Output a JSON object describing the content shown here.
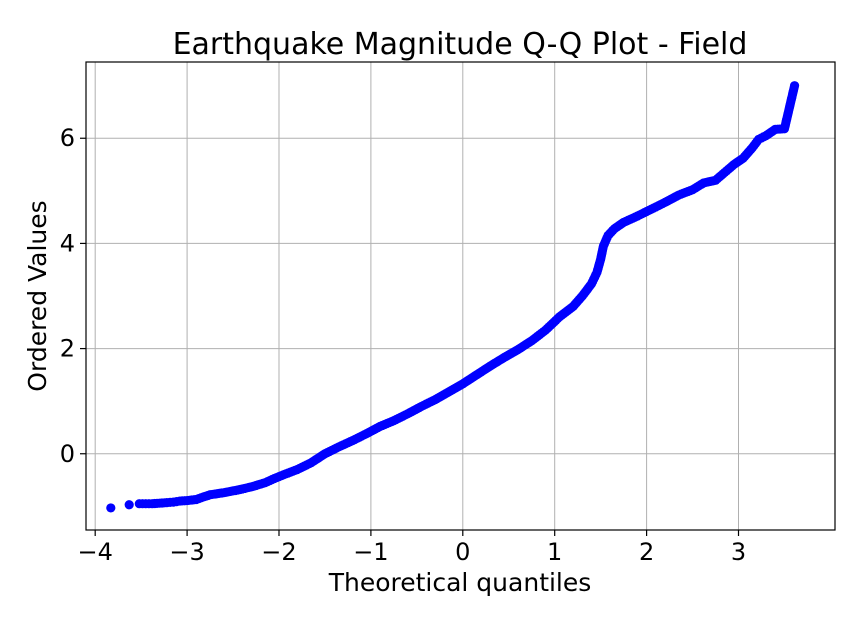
{
  "chart_data": {
    "type": "scatter",
    "title": "Earthquake Magnitude Q-Q Plot - Field",
    "xlabel": "Theoretical quantiles",
    "ylabel": "Ordered Values",
    "xlim": [
      -4.1,
      4.05
    ],
    "ylim": [
      -1.45,
      7.45
    ],
    "x_ticks": [
      -4,
      -3,
      -2,
      -1,
      0,
      1,
      2,
      3
    ],
    "x_tick_labels": [
      "−4",
      "−3",
      "−2",
      "−1",
      "0",
      "1",
      "2",
      "3"
    ],
    "y_ticks": [
      0,
      2,
      4,
      6
    ],
    "y_tick_labels": [
      "0",
      "2",
      "4",
      "6"
    ],
    "grid": true,
    "marker_color": "#0000ff",
    "series": [
      {
        "points": [
          [
            -3.83,
            -1.03
          ],
          [
            -3.63,
            -0.97
          ],
          [
            -3.52,
            -0.95
          ],
          [
            -3.45,
            -0.95
          ],
          [
            -3.38,
            -0.95
          ],
          [
            -3.3,
            -0.94
          ],
          [
            -3.22,
            -0.93
          ],
          [
            -3.15,
            -0.92
          ],
          [
            -3.08,
            -0.9
          ],
          [
            -3.0,
            -0.89
          ],
          [
            -2.9,
            -0.87
          ],
          [
            -2.82,
            -0.82
          ],
          [
            -2.75,
            -0.78
          ],
          [
            -2.6,
            -0.74
          ],
          [
            -2.45,
            -0.69
          ],
          [
            -2.3,
            -0.63
          ],
          [
            -2.15,
            -0.55
          ],
          [
            -2.05,
            -0.47
          ],
          [
            -1.95,
            -0.4
          ],
          [
            -1.8,
            -0.3
          ],
          [
            -1.65,
            -0.17
          ],
          [
            -1.5,
            0.0
          ],
          [
            -1.35,
            0.13
          ],
          [
            -1.2,
            0.25
          ],
          [
            -1.05,
            0.38
          ],
          [
            -0.9,
            0.52
          ],
          [
            -0.75,
            0.63
          ],
          [
            -0.6,
            0.76
          ],
          [
            -0.45,
            0.9
          ],
          [
            -0.3,
            1.03
          ],
          [
            -0.15,
            1.18
          ],
          [
            0.0,
            1.33
          ],
          [
            0.15,
            1.5
          ],
          [
            0.3,
            1.67
          ],
          [
            0.45,
            1.83
          ],
          [
            0.6,
            1.98
          ],
          [
            0.75,
            2.15
          ],
          [
            0.9,
            2.35
          ],
          [
            1.05,
            2.6
          ],
          [
            1.2,
            2.8
          ],
          [
            1.3,
            3.0
          ],
          [
            1.4,
            3.23
          ],
          [
            1.46,
            3.45
          ],
          [
            1.5,
            3.7
          ],
          [
            1.53,
            3.95
          ],
          [
            1.58,
            4.15
          ],
          [
            1.65,
            4.28
          ],
          [
            1.75,
            4.4
          ],
          [
            1.9,
            4.52
          ],
          [
            2.05,
            4.65
          ],
          [
            2.2,
            4.78
          ],
          [
            2.35,
            4.92
          ],
          [
            2.5,
            5.02
          ],
          [
            2.62,
            5.15
          ],
          [
            2.75,
            5.2
          ],
          [
            2.85,
            5.35
          ],
          [
            2.95,
            5.5
          ],
          [
            3.05,
            5.62
          ],
          [
            3.15,
            5.82
          ],
          [
            3.22,
            5.98
          ],
          [
            3.3,
            6.05
          ],
          [
            3.4,
            6.17
          ],
          [
            3.5,
            6.18
          ],
          [
            3.61,
            7.0
          ]
        ]
      }
    ]
  }
}
